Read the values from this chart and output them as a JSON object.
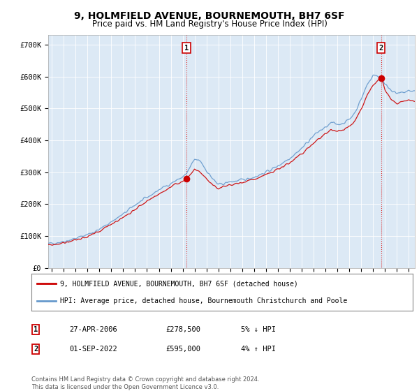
{
  "title": "9, HOLMFIELD AVENUE, BOURNEMOUTH, BH7 6SF",
  "subtitle": "Price paid vs. HM Land Registry's House Price Index (HPI)",
  "title_fontsize": 10,
  "subtitle_fontsize": 8.5,
  "background_color": "#ffffff",
  "grid_color": "#b0c4de",
  "plot_bg": "#dce9f5",
  "ylabel_ticks": [
    "£0",
    "£100K",
    "£200K",
    "£300K",
    "£400K",
    "£500K",
    "£600K",
    "£700K"
  ],
  "ytick_values": [
    0,
    100000,
    200000,
    300000,
    400000,
    500000,
    600000,
    700000
  ],
  "ylim": [
    0,
    730000
  ],
  "xlim_start": 1994.7,
  "xlim_end": 2025.5,
  "hpi_color": "#6699cc",
  "price_color": "#cc0000",
  "purchase1_x": 2006.32,
  "purchase1_y": 278500,
  "purchase2_x": 2022.67,
  "purchase2_y": 595000,
  "purchase1_label": "1",
  "purchase2_label": "2",
  "legend_line1": "9, HOLMFIELD AVENUE, BOURNEMOUTH, BH7 6SF (detached house)",
  "legend_line2": "HPI: Average price, detached house, Bournemouth Christchurch and Poole",
  "table_row1": [
    "1",
    "27-APR-2006",
    "£278,500",
    "5% ↓ HPI"
  ],
  "table_row2": [
    "2",
    "01-SEP-2022",
    "£595,000",
    "4% ↑ HPI"
  ],
  "footer": "Contains HM Land Registry data © Crown copyright and database right 2024.\nThis data is licensed under the Open Government Licence v3.0.",
  "xtick_years": [
    1995,
    1996,
    1997,
    1998,
    1999,
    2000,
    2001,
    2002,
    2003,
    2004,
    2005,
    2006,
    2007,
    2008,
    2009,
    2010,
    2011,
    2012,
    2013,
    2014,
    2015,
    2016,
    2017,
    2018,
    2019,
    2020,
    2021,
    2022,
    2023,
    2024,
    2025
  ],
  "hpi_anchors_x": [
    1994.7,
    1995.5,
    1996,
    1997,
    1998,
    1999,
    2000,
    2001,
    2002,
    2003,
    2004,
    2005,
    2006,
    2006.32,
    2007.0,
    2007.5,
    2008.0,
    2008.5,
    2009.0,
    2009.5,
    2010,
    2011,
    2012,
    2013,
    2014,
    2015,
    2016,
    2017,
    2017.5,
    2018,
    2018.5,
    2019,
    2019.5,
    2020,
    2020.5,
    2021,
    2021.5,
    2022,
    2022.5,
    2022.67,
    2023,
    2023.5,
    2024,
    2024.5,
    2025
  ],
  "hpi_anchors_y": [
    75000,
    80000,
    83000,
    92000,
    105000,
    120000,
    145000,
    168000,
    198000,
    220000,
    245000,
    265000,
    285000,
    295000,
    340000,
    335000,
    305000,
    280000,
    260000,
    265000,
    270000,
    275000,
    285000,
    300000,
    320000,
    345000,
    375000,
    415000,
    430000,
    440000,
    455000,
    450000,
    455000,
    465000,
    490000,
    530000,
    575000,
    605000,
    600000,
    600000,
    575000,
    560000,
    545000,
    550000,
    555000
  ],
  "price_anchors_x": [
    1994.7,
    1995.5,
    1996,
    1997,
    1998,
    1999,
    2000,
    2001,
    2002,
    2003,
    2004,
    2005,
    2006,
    2006.32,
    2007.0,
    2007.5,
    2008.0,
    2008.5,
    2009.0,
    2009.5,
    2010,
    2011,
    2012,
    2013,
    2014,
    2015,
    2016,
    2017,
    2017.5,
    2018,
    2018.5,
    2019,
    2019.5,
    2020,
    2020.5,
    2021,
    2021.5,
    2022,
    2022.5,
    2022.67,
    2023,
    2023.5,
    2024,
    2024.5,
    2025
  ],
  "price_anchors_y": [
    70000,
    75000,
    78000,
    87000,
    98000,
    112000,
    138000,
    158000,
    185000,
    208000,
    232000,
    252000,
    272000,
    278500,
    310000,
    298000,
    278000,
    262000,
    248000,
    255000,
    260000,
    268000,
    278000,
    292000,
    308000,
    330000,
    358000,
    392000,
    408000,
    418000,
    432000,
    428000,
    433000,
    442000,
    462000,
    500000,
    542000,
    575000,
    592000,
    595000,
    555000,
    530000,
    515000,
    520000,
    525000
  ]
}
